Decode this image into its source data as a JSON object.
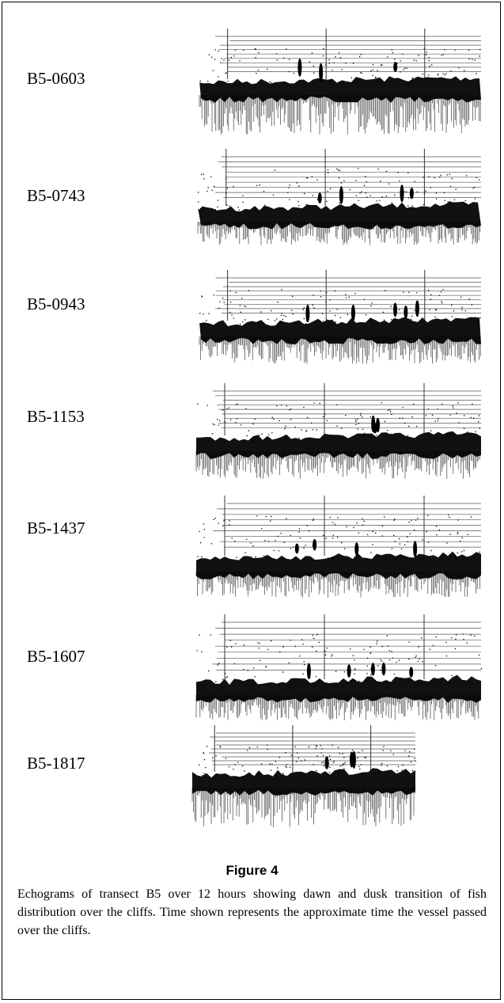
{
  "panels": [
    {
      "label": "B5-0603"
    },
    {
      "label": "B5-0743"
    },
    {
      "label": "B5-0943"
    },
    {
      "label": "B5-1153"
    },
    {
      "label": "B5-1437"
    },
    {
      "label": "B5-1607"
    },
    {
      "label": "B5-1817"
    }
  ],
  "figure": {
    "title": "Figure 4",
    "caption": "Echograms of transect B5 over 12 hours showing dawn and dusk transition of fish distribution over the cliffs. Time shown represents the approximate time the vessel passed over the cliffs."
  }
}
